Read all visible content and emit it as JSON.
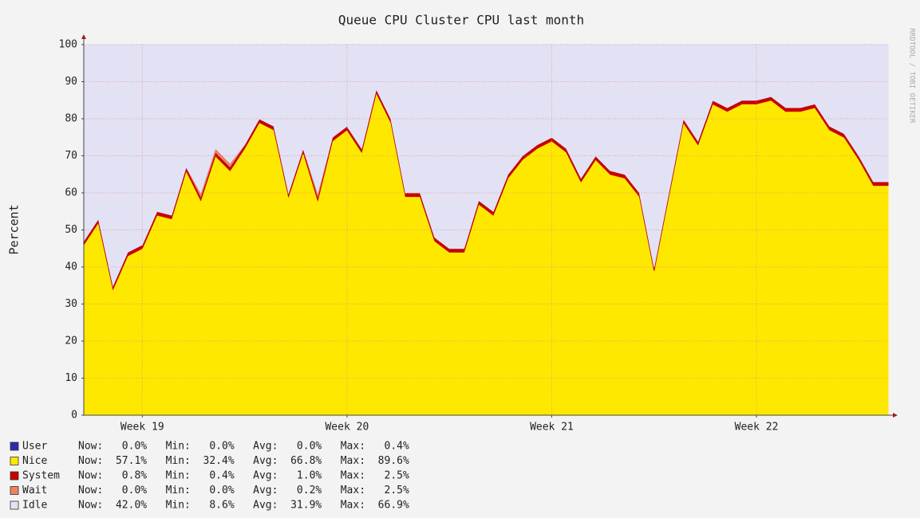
{
  "chart_data": {
    "type": "area",
    "stacked": true,
    "title": "Queue CPU Cluster CPU last month",
    "ylabel": "Percent",
    "watermark": "RRDTOOL / TOBI OETIKER",
    "x": [
      0,
      0.5,
      1,
      1.5,
      2,
      2.5,
      3,
      3.5,
      4,
      4.5,
      5,
      5.5,
      6,
      6.5,
      7,
      7.5,
      8,
      8.5,
      9,
      9.5,
      10,
      10.5,
      11,
      11.5,
      12,
      12.5,
      13,
      13.5,
      14,
      14.5,
      15,
      15.5,
      16,
      16.5,
      17,
      17.5,
      18,
      18.5,
      19,
      19.5,
      20,
      20.5,
      21,
      21.5,
      22,
      22.5,
      23,
      23.5,
      24,
      24.5,
      25,
      25.5,
      26,
      26.5,
      27,
      27.5
    ],
    "xlim": [
      0,
      27.5
    ],
    "xticks": [
      {
        "value": 2,
        "label": "Week 19"
      },
      {
        "value": 9,
        "label": "Week 20"
      },
      {
        "value": 16,
        "label": "Week 21"
      },
      {
        "value": 23,
        "label": "Week 22"
      }
    ],
    "ylim": [
      0,
      100
    ],
    "yticks": [
      0,
      10,
      20,
      30,
      40,
      50,
      60,
      70,
      80,
      90,
      100
    ],
    "grid": true,
    "series": [
      {
        "name": "Nice",
        "color": "#ffe800",
        "stats": "Now:  57.1%   Min:  32.4%   Avg:  66.8%   Max:  89.6%",
        "values": [
          46,
          52,
          34,
          43,
          45,
          54,
          53,
          66,
          58,
          70,
          66,
          72,
          79,
          77,
          59,
          71,
          58,
          74,
          77,
          71,
          87,
          79,
          59,
          59,
          47,
          44,
          44,
          57,
          54,
          64,
          69,
          72,
          74,
          71,
          63,
          69,
          65,
          64,
          59,
          39,
          59,
          79,
          73,
          84,
          82,
          84,
          84,
          85,
          82,
          82,
          83,
          77,
          75,
          69,
          62,
          62
        ]
      },
      {
        "name": "System",
        "color": "#c80000",
        "stats": "Now:   0.8%   Min:   0.4%   Avg:   1.0%   Max:   2.5%",
        "values": [
          1,
          1,
          1,
          1,
          1,
          1,
          1,
          1,
          1,
          1,
          1,
          1,
          1,
          1,
          1,
          1,
          1,
          1,
          1,
          1,
          1,
          1,
          1,
          1,
          1,
          1,
          1,
          1,
          1,
          1,
          1,
          1,
          1,
          1,
          1,
          1,
          1,
          1,
          1,
          1,
          1,
          1,
          1,
          1,
          1,
          1,
          1,
          1,
          1,
          1,
          1,
          1,
          1,
          1,
          1,
          1
        ]
      },
      {
        "name": "Wait",
        "color": "#f08060",
        "stats": "Now:   0.0%   Min:   0.0%   Avg:   0.2%   Max:   2.5%",
        "values": [
          0,
          0,
          0,
          0,
          0,
          0,
          0,
          0,
          1,
          1,
          1,
          0,
          0,
          0,
          0,
          0,
          1,
          0,
          0,
          0,
          0,
          0,
          0,
          0,
          0,
          0,
          0,
          0,
          0,
          0,
          0,
          0,
          0,
          0,
          0,
          0,
          0,
          0,
          0,
          0,
          0,
          0,
          0,
          0,
          0,
          0,
          0,
          0,
          0,
          0,
          0,
          0,
          0,
          0,
          0,
          0
        ]
      },
      {
        "name": "User",
        "color": "#2a2ab0",
        "stats": "Now:   0.0%   Min:   0.0%   Avg:   0.0%   Max:   0.4%",
        "values": [
          0,
          0,
          0,
          0,
          0,
          0,
          0,
          0,
          0,
          0,
          0,
          0,
          0,
          0,
          0,
          0,
          0,
          0,
          0,
          0,
          0,
          0,
          0,
          0,
          0,
          0,
          0,
          0,
          0,
          0,
          0,
          0,
          0,
          0,
          0,
          0,
          0,
          0,
          0,
          0,
          0,
          0,
          0,
          0,
          0,
          0,
          0,
          0,
          0,
          0,
          0,
          0,
          0,
          0,
          0,
          0
        ]
      },
      {
        "name": "Idle",
        "color": "#e2e2f4",
        "stats": "Now:  42.0%   Min:   8.6%   Avg:  31.9%   Max:  66.9%",
        "values": [
          53,
          47,
          65,
          56,
          54,
          45,
          46,
          33,
          40,
          28,
          32,
          27,
          20,
          22,
          40,
          28,
          40,
          25,
          22,
          28,
          12,
          20,
          40,
          40,
          52,
          55,
          55,
          42,
          45,
          35,
          30,
          27,
          25,
          28,
          36,
          30,
          34,
          35,
          40,
          60,
          40,
          20,
          26,
          15,
          17,
          15,
          15,
          14,
          17,
          17,
          16,
          22,
          24,
          30,
          37,
          37
        ]
      }
    ],
    "legend_order": [
      3,
      0,
      1,
      2,
      4
    ]
  }
}
